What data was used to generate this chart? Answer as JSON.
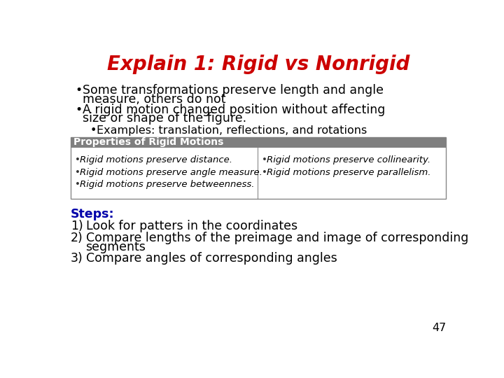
{
  "title": "Explain 1: Rigid vs Nonrigid",
  "title_color": "#CC0000",
  "title_fontsize": 20,
  "background_color": "#FFFFFF",
  "bullet1_line1": "Some transformations preserve length and angle",
  "bullet1_line2": "measure, others do not",
  "bullet2_line1": "A rigid motion changed position without affecting",
  "bullet2_line2": "size or shape of the figure.",
  "sub_bullet": "Examples: translation, reflections, and rotations",
  "table_header": "Properties of Rigid Motions",
  "table_header_bg": "#7F7F7F",
  "table_header_color": "#FFFFFF",
  "table_left": [
    "Rigid motions preserve distance.",
    "Rigid motions preserve angle measure.",
    "Rigid motions preserve betweenness."
  ],
  "table_right": [
    "Rigid motions preserve collinearity.",
    "Rigid motions preserve parallelism."
  ],
  "steps_label": "Steps:",
  "steps_color": "#0000AA",
  "step1": "Look for patters in the coordinates",
  "step2_line1": "Compare lengths of the preimage and image of corresponding",
  "step2_line2": "segments",
  "step3": "Compare angles of corresponding angles",
  "page_number": "47",
  "body_fontsize": 12.5,
  "sub_fontsize": 11.5,
  "table_fontsize": 9.5,
  "steps_fontsize": 12.5
}
